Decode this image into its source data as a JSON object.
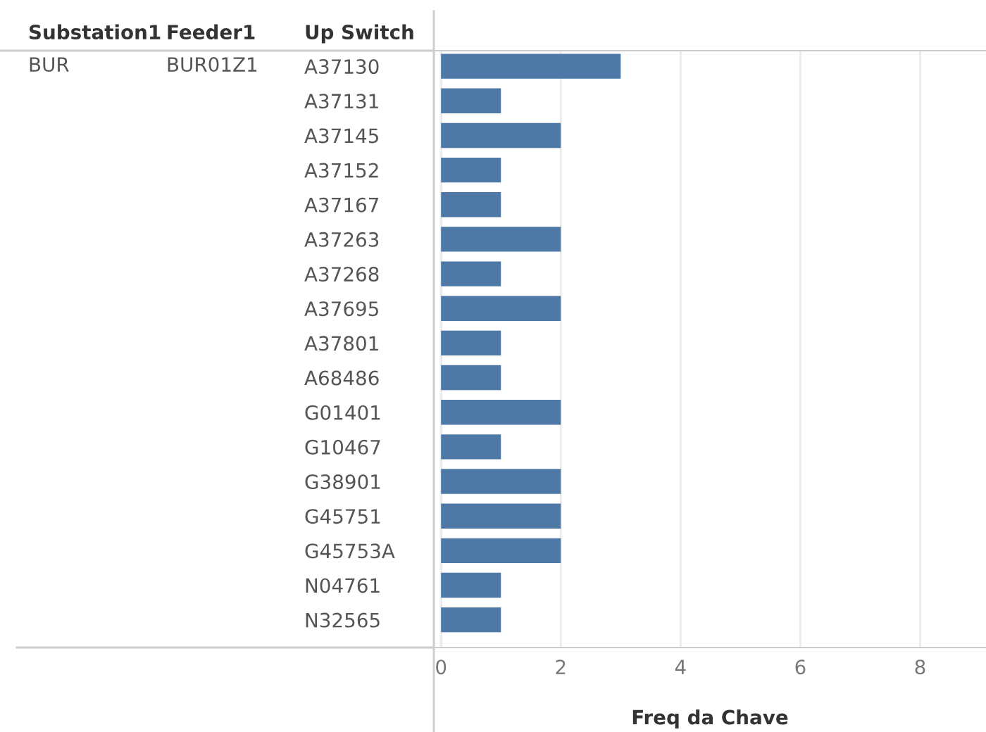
{
  "chart_data": {
    "type": "bar",
    "orientation": "horizontal",
    "xlabel": "Freq da Chave",
    "ylabel": "Up Switch",
    "annotations": [
      "Substation1",
      "Feeder1",
      "BUR",
      "BUR01Z1"
    ],
    "categories": [
      "A37130",
      "A37131",
      "A37145",
      "A37152",
      "A37167",
      "A37263",
      "A37268",
      "A37695",
      "A37801",
      "A68486",
      "G01401",
      "G10467",
      "G38901",
      "G45751",
      "G45753A",
      "N04761",
      "N32565"
    ],
    "values": [
      3,
      1,
      2,
      1,
      1,
      2,
      1,
      2,
      1,
      1,
      2,
      1,
      2,
      2,
      2,
      1,
      1
    ],
    "color": "#4e79a7",
    "xlim": [
      -0.12,
      9.1
    ],
    "xticks": [
      0,
      2,
      4,
      6,
      8
    ],
    "grid": "x"
  }
}
